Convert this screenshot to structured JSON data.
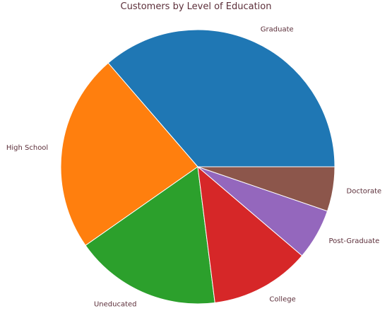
{
  "chart_data": {
    "type": "pie",
    "title": "Customers by Level of Education",
    "start_angle_deg": 0,
    "direction": "counterclockwise",
    "label_color": "#5c2f3a",
    "slices": [
      {
        "label": "Graduate",
        "value": 3128,
        "color": "#1f77b4"
      },
      {
        "label": "High School",
        "value": 2013,
        "color": "#ff7f0e"
      },
      {
        "label": "Uneducated",
        "value": 1487,
        "color": "#2ca02c"
      },
      {
        "label": "College",
        "value": 1013,
        "color": "#d62728"
      },
      {
        "label": "Post-Graduate",
        "value": 516,
        "color": "#9467bd"
      },
      {
        "label": "Doctorate",
        "value": 451,
        "color": "#8c564b"
      }
    ]
  }
}
